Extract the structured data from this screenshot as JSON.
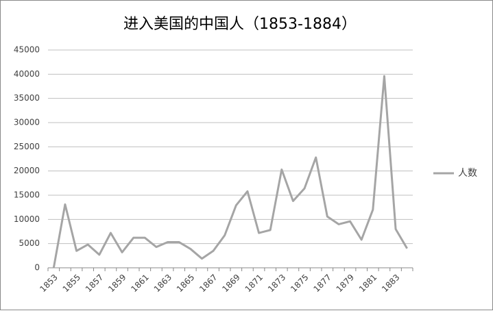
{
  "chart_data": {
    "type": "line",
    "title": "进入美国的中国人（1853-1884）",
    "categories": [
      "1853",
      null,
      "1855",
      null,
      "1857",
      null,
      "1859",
      null,
      "1861",
      null,
      "1863",
      null,
      "1865",
      null,
      "1867",
      null,
      "1869",
      null,
      "1871",
      null,
      "1873",
      null,
      "1875",
      null,
      "1877",
      null,
      "1879",
      null,
      "1881",
      null,
      "1883",
      null
    ],
    "series": [
      {
        "name": "人数",
        "color": "#a5a5a5",
        "values": [
          0,
          13100,
          3500,
          4800,
          2700,
          7200,
          3200,
          6200,
          6200,
          4300,
          5300,
          5300,
          3900,
          1900,
          3500,
          6700,
          12900,
          15800,
          7200,
          7800,
          20300,
          13800,
          16400,
          22800,
          10600,
          9000,
          9600,
          5800,
          12000,
          39600,
          8000,
          4000
        ]
      }
    ],
    "ylim": [
      0,
      45000
    ],
    "yticks": [
      0,
      5000,
      10000,
      15000,
      20000,
      25000,
      30000,
      35000,
      40000,
      45000
    ],
    "grid": true,
    "legend": "right"
  }
}
